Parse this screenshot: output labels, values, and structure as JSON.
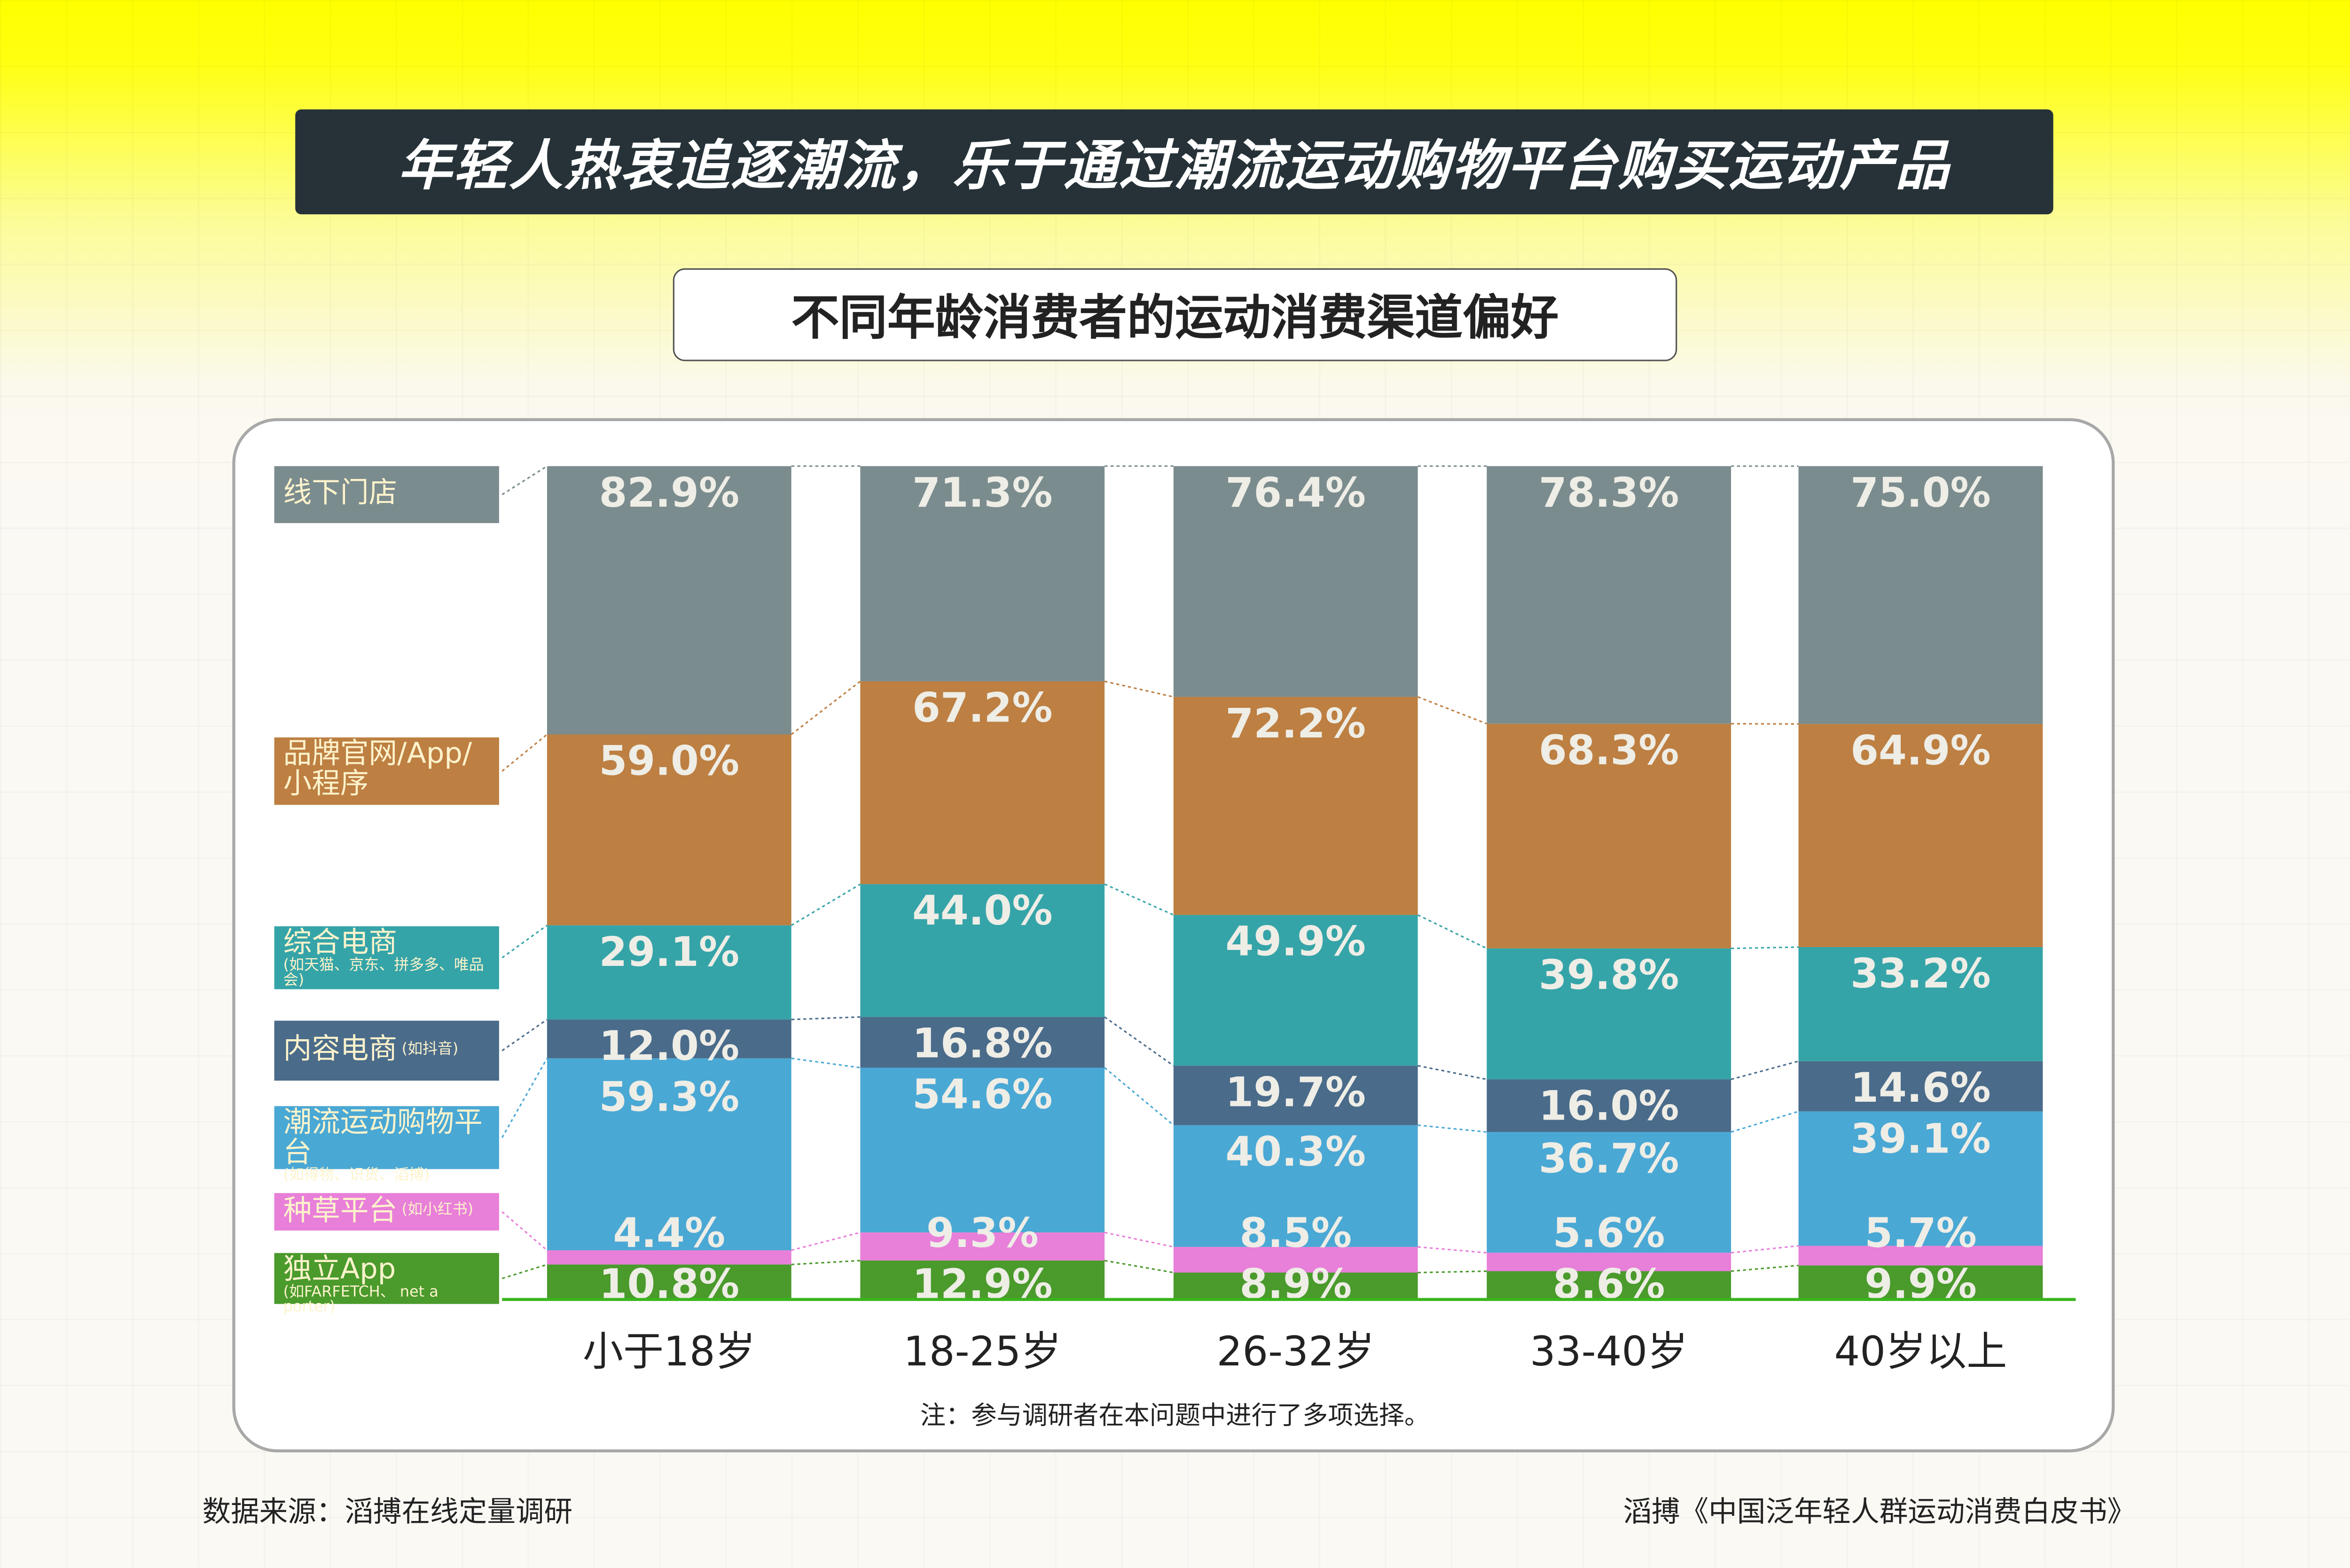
{
  "title": "年轻人热衷追逐潮流，乐于通过潮流运动购物平台购买运动产品",
  "chart_data": {
    "type": "bar",
    "stacked": true,
    "title": "不同年龄消费者的运动消费渠道偏好",
    "categories": [
      "小于18岁",
      "18-25岁",
      "26-32岁",
      "33-40岁",
      "40岁以上"
    ],
    "series": [
      {
        "name": "线下门店",
        "note": "",
        "color": "#7b8c8e",
        "values": [
          82.9,
          71.3,
          76.4,
          78.3,
          75.0
        ],
        "labels": [
          "82.9%",
          "71.3%",
          "76.4%",
          "78.3%",
          "75.0%"
        ]
      },
      {
        "name": "品牌官网/App/小程序",
        "note": "",
        "color": "#bd7f42",
        "values": [
          59.0,
          67.2,
          72.2,
          68.3,
          64.9
        ],
        "labels": [
          "59.0%",
          "67.2%",
          "72.2%",
          "68.3%",
          "64.9%"
        ]
      },
      {
        "name": "综合电商",
        "note": "(如天猫、京东、拼多多、唯品会)",
        "color": "#35a4a8",
        "values": [
          29.1,
          44.0,
          49.9,
          39.8,
          33.2
        ],
        "labels": [
          "29.1%",
          "44.0%",
          "49.9%",
          "39.8%",
          "33.2%"
        ]
      },
      {
        "name": "内容电商",
        "note": "(如抖音)",
        "color": "#4a6b8a",
        "values": [
          12.0,
          16.8,
          19.7,
          16.0,
          14.6
        ],
        "labels": [
          "12.0%",
          "16.8%",
          "19.7%",
          "16.0%",
          "14.6%"
        ]
      },
      {
        "name": "潮流运动购物平台",
        "note": "(如得物、识货、滔搏)",
        "color": "#4aa8d4",
        "values": [
          59.3,
          54.6,
          40.3,
          36.7,
          39.1
        ],
        "labels": [
          "59.3%",
          "54.6%",
          "40.3%",
          "36.7%",
          "39.1%"
        ]
      },
      {
        "name": "种草平台",
        "note": "(如小红书)",
        "color": "#e87fd9",
        "values": [
          4.4,
          9.3,
          8.5,
          5.6,
          5.7
        ],
        "labels": [
          "4.4%",
          "9.3%",
          "8.5%",
          "5.6%",
          "5.7%"
        ]
      },
      {
        "name": "独立App",
        "note": "(如FARFETCH、 net a porter)",
        "color": "#4a9a2c",
        "values": [
          10.8,
          12.9,
          8.9,
          8.6,
          9.9
        ],
        "labels": [
          "10.8%",
          "12.9%",
          "8.9%",
          "8.6%",
          "9.9%"
        ]
      }
    ],
    "note": "注：参与调研者在本问题中进行了多项选择。",
    "legend": "left",
    "grid": false
  },
  "footer": {
    "source": "数据来源：滔搏在线定量调研",
    "report": "滔搏《中国泛年轻人群运动消费白皮书》"
  }
}
